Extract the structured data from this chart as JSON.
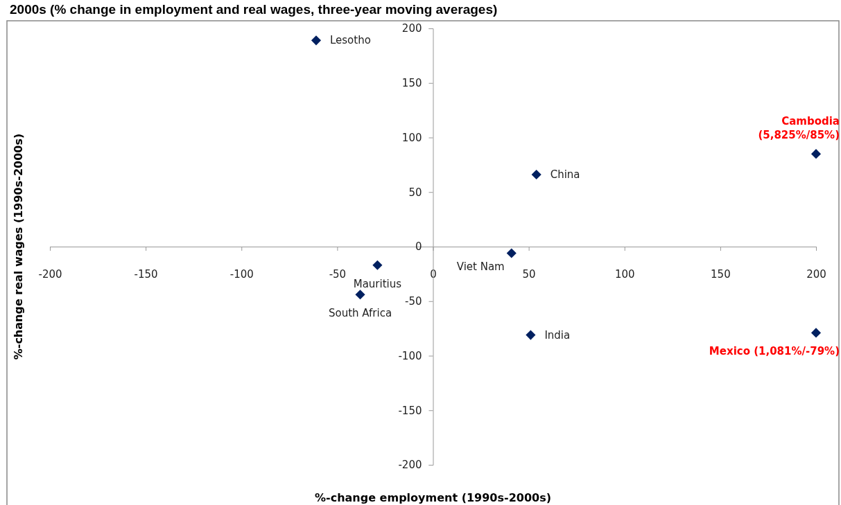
{
  "chart_data": {
    "type": "scatter",
    "title": "2000s (% change in employment and real wages, three-year moving averages)",
    "xlabel": "%-change employment (1990s-2000s)",
    "ylabel": "%-change real wages (1990s-2000s)",
    "x": [
      -61,
      -29,
      -38,
      41,
      54,
      51,
      200,
      200
    ],
    "series": [
      {
        "color": "#002060",
        "values": [
          189,
          -17,
          -44,
          -6,
          66,
          -81,
          85,
          -79
        ]
      }
    ],
    "marker": "diamond",
    "grid": false,
    "xlim": [
      -200,
      200
    ],
    "xticks": [
      -200,
      -150,
      -100,
      -50,
      0,
      50,
      100,
      150,
      200
    ],
    "ylim": [
      -200,
      200
    ],
    "yticks": [
      -200,
      -150,
      -100,
      -50,
      0,
      50,
      100,
      150,
      200
    ],
    "annotations": [
      {
        "text": "Lesotho",
        "x": -61,
        "y": 189
      },
      {
        "text": "Mauritius",
        "x": -29,
        "y": -17
      },
      {
        "text": "South Africa",
        "x": -38,
        "y": -44
      },
      {
        "text": "Viet Nam",
        "x": 41,
        "y": -6
      },
      {
        "text": "China",
        "x": 54,
        "y": 66
      },
      {
        "text": "India",
        "x": 51,
        "y": -81
      },
      {
        "text": "Cambodia\n(5,825%/85%)",
        "x": 200,
        "y": 85
      },
      {
        "text": "Mexico (1,081%/-79%)",
        "x": 200,
        "y": -79
      }
    ]
  }
}
